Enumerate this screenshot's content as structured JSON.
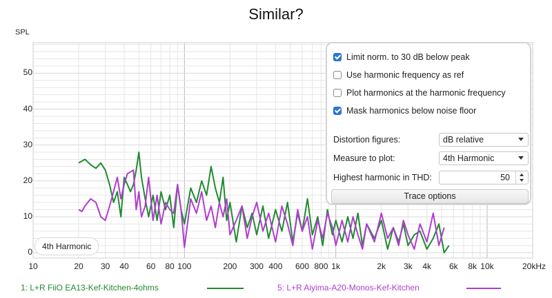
{
  "title": "Similar?",
  "colors": {
    "series1": "#1f8a2e",
    "series2": "#b03cd0",
    "grid": "#e6e6e6",
    "frame": "#cfcfcf",
    "accent": "#2a7ad8"
  },
  "chart_data": {
    "type": "line",
    "ylabel": "SPL",
    "xunit": "Hz",
    "xscale": "log",
    "xlim": [
      10,
      20000
    ],
    "ylim": [
      -1.5,
      58.5
    ],
    "yticks": [
      0,
      10,
      20,
      30,
      40,
      50
    ],
    "xtick_labels": [
      {
        "v": 10,
        "t": "10"
      },
      {
        "v": 20,
        "t": "20"
      },
      {
        "v": 30,
        "t": "30"
      },
      {
        "v": 40,
        "t": "40"
      },
      {
        "v": 60,
        "t": "60"
      },
      {
        "v": 80,
        "t": "80"
      },
      {
        "v": 100,
        "t": "100"
      },
      {
        "v": 200,
        "t": "200"
      },
      {
        "v": 300,
        "t": "300"
      },
      {
        "v": 400,
        "t": "400"
      },
      {
        "v": 600,
        "t": "600"
      },
      {
        "v": 800,
        "t": "800"
      },
      {
        "v": 1000,
        "t": "1k"
      },
      {
        "v": 2000,
        "t": "2k"
      },
      {
        "v": 3000,
        "t": "3k"
      },
      {
        "v": 4000,
        "t": "4k"
      },
      {
        "v": 6000,
        "t": "6k"
      },
      {
        "v": 8000,
        "t": "8k"
      },
      {
        "v": 10000,
        "t": "10k"
      },
      {
        "v": 20000,
        "t": "20kHz"
      }
    ],
    "grid": true,
    "series": [
      {
        "name": "1: L+R FiiO EA13-Kef-Kitchen-4ohms",
        "x": [
          20,
          22,
          24,
          26,
          28,
          30,
          32,
          34,
          36,
          38,
          40,
          42,
          44,
          46,
          48,
          50,
          52,
          55,
          58,
          62,
          66,
          70,
          75,
          80,
          85,
          90,
          95,
          100,
          110,
          120,
          130,
          140,
          150,
          160,
          170,
          180,
          190,
          200,
          220,
          240,
          260,
          280,
          300,
          330,
          360,
          400,
          440,
          480,
          520,
          560,
          600,
          650,
          700,
          760,
          820,
          880,
          950,
          1000,
          1100,
          1200,
          1300,
          1400,
          1500,
          1600,
          1800,
          2000,
          2200,
          2400,
          2600,
          2800,
          3000,
          3300,
          3600,
          4000,
          4400,
          4800,
          5200,
          5600
        ],
        "values": [
          25,
          26,
          24.5,
          23.5,
          25,
          23,
          19,
          14,
          17,
          10,
          21,
          19,
          17,
          19,
          23,
          28,
          21,
          15,
          10,
          16,
          9,
          17,
          12,
          16,
          7,
          19,
          12,
          8,
          18,
          14,
          20,
          16,
          24,
          18,
          14,
          21,
          9,
          14,
          3,
          13,
          7,
          11,
          5,
          13,
          4,
          12,
          6,
          14,
          3,
          11,
          6,
          15,
          5,
          10,
          2,
          12,
          5,
          9,
          3,
          10,
          4,
          11,
          2,
          8,
          4,
          9,
          1,
          7,
          3,
          8,
          2,
          5,
          6,
          1,
          4,
          8,
          0,
          2
        ]
      },
      {
        "name": "5: L+R Aiyima-A20-Monos-Kef-Kitchen",
        "x": [
          20,
          21,
          22,
          24,
          26,
          28,
          30,
          32,
          34,
          36,
          38,
          40,
          42,
          44,
          46,
          48,
          50,
          52,
          55,
          58,
          62,
          66,
          70,
          75,
          80,
          85,
          90,
          95,
          100,
          110,
          120,
          130,
          140,
          150,
          160,
          170,
          180,
          190,
          200,
          220,
          240,
          260,
          280,
          300,
          330,
          360,
          400,
          440,
          480,
          520,
          560,
          600,
          650,
          700,
          760,
          820,
          880,
          950,
          1000,
          1100,
          1200,
          1300,
          1400,
          1500,
          1600,
          1800,
          2000,
          2200,
          2400,
          2600,
          2800,
          3000,
          3300,
          3600,
          4000,
          4400,
          4800,
          5200
        ],
        "values": [
          12,
          11.5,
          13,
          15,
          14,
          10,
          9,
          13,
          17,
          21,
          15,
          19,
          22,
          22.5,
          23,
          12,
          17,
          10,
          13,
          21,
          9,
          16,
          8,
          14,
          12,
          11,
          19,
          12,
          1.5,
          15,
          11,
          17,
          9,
          13,
          7,
          14,
          10,
          15,
          5,
          9,
          13,
          4,
          10,
          14,
          6,
          11,
          3,
          13,
          8,
          2,
          12,
          6,
          10,
          1,
          9,
          4,
          11,
          7,
          2,
          9,
          3,
          10,
          5,
          1,
          8,
          3,
          11,
          4,
          7,
          2,
          9,
          5,
          1,
          8,
          3,
          11,
          2,
          7
        ]
      }
    ]
  },
  "plot_label": "4th Harmonic",
  "panel": {
    "checkboxes": [
      {
        "label": "Limit norm. to 30 dB below peak",
        "checked": true
      },
      {
        "label": "Use harmonic frequency as ref",
        "checked": false
      },
      {
        "label": "Plot harmonics at the harmonic frequency",
        "checked": false
      },
      {
        "label": "Mask harmonics below noise floor",
        "checked": true
      }
    ],
    "distortion_label": "Distortion figures:",
    "distortion_value": "dB relative",
    "measure_label": "Measure to plot:",
    "measure_value": "4th Harmonic",
    "highest_label": "Highest harmonic in THD:",
    "highest_value": "50",
    "trace_button": "Trace options"
  }
}
